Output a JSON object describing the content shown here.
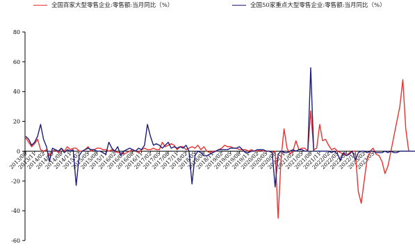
{
  "chart_data": {
    "type": "line",
    "title": "",
    "xlabel": "",
    "ylabel": "",
    "ylim": [
      -60,
      80
    ],
    "yticks": [
      -60,
      -40,
      -20,
      0,
      20,
      40,
      60,
      80
    ],
    "grid": false,
    "legend_position": "top",
    "x_tick_labels": [
      "2013/08",
      "2013/11",
      "2014/02",
      "2014/05",
      "2014/08",
      "2014/11",
      "2015/02",
      "2015/05",
      "2015/08",
      "2015/11",
      "2016/02",
      "2016/05",
      "2016/08",
      "2016/11",
      "2017/02",
      "2017/05",
      "2017/08",
      "2017/11",
      "2018/02",
      "2018/05",
      "2018/08",
      "2018/11",
      "2019/02",
      "2019/05",
      "2019/08",
      "2019/11",
      "2020/02",
      "2020/05",
      "2020/08",
      "2020/11",
      "2021/02",
      "2021/05",
      "2021/08",
      "2021/11",
      "2022/02",
      "2022/05",
      "2022/08",
      "2022/11",
      "2023/02",
      "2023/05"
    ],
    "x_start": "2013/08",
    "series": [
      {
        "name": "全国百家大型零售企业:零售额:当月同比（%）",
        "color": "#e8302e",
        "values": [
          9,
          6,
          3,
          5,
          8,
          1,
          0,
          1,
          -3,
          0,
          1,
          -1,
          2,
          0,
          3,
          1,
          2,
          2,
          0,
          0,
          1,
          3,
          0,
          1,
          2,
          2,
          1,
          1,
          0,
          1,
          0,
          -1,
          -1,
          -2,
          -1,
          0,
          1,
          0,
          -1,
          1,
          2,
          1,
          1,
          2,
          1,
          1,
          6,
          3,
          4,
          5,
          4,
          1,
          3,
          3,
          1,
          2,
          3,
          2,
          4,
          1,
          3,
          0,
          -1,
          0,
          0,
          1,
          2,
          4,
          3,
          3,
          2,
          2,
          1,
          1,
          1,
          0,
          1,
          0,
          0,
          1,
          0,
          0,
          0,
          -1,
          0,
          -45,
          -5,
          15,
          2,
          -2,
          0,
          7,
          1,
          2,
          2,
          0,
          27,
          1,
          2,
          18,
          7,
          8,
          4,
          1,
          2,
          0,
          -1,
          -2,
          -3,
          -1,
          0,
          0,
          -27,
          -35,
          -20,
          -5,
          0,
          2,
          -2,
          -3,
          -7,
          -15,
          -10,
          0,
          10,
          20,
          30,
          48,
          15,
          0
        ]
      },
      {
        "name": "全国50家重点大型零售企业:零售额:当月同比（%）",
        "color": "#1c1c7a",
        "values": [
          10,
          8,
          4,
          6,
          10,
          18,
          8,
          3,
          -7,
          2,
          1,
          0,
          2,
          -1,
          1,
          0,
          1,
          -23,
          -3,
          0,
          1,
          2,
          1,
          1,
          0,
          0,
          -1,
          -2,
          6,
          2,
          0,
          3,
          -3,
          0,
          1,
          2,
          1,
          0,
          2,
          1,
          4,
          18,
          10,
          4,
          5,
          4,
          2,
          4,
          6,
          2,
          3,
          2,
          3,
          2,
          4,
          0,
          -22,
          -3,
          0,
          -1,
          -3,
          -3,
          -2,
          -1,
          0,
          1,
          1,
          1,
          1,
          2,
          2,
          2,
          3,
          1,
          -1,
          -1,
          0,
          0,
          1,
          1,
          1,
          0,
          0,
          -1,
          -24,
          -2,
          0,
          -1,
          -1,
          0,
          1,
          0,
          1,
          1,
          0,
          0,
          56,
          0,
          0,
          0,
          0,
          0,
          0,
          -1,
          0,
          -2,
          -6,
          -1,
          -3,
          -2,
          0,
          -6,
          -1,
          0,
          0,
          -1,
          0,
          0,
          -1,
          -1,
          -1,
          0,
          -1,
          0,
          -1,
          -1,
          0,
          0,
          0,
          0,
          0,
          0,
          0,
          0
        ]
      }
    ]
  }
}
